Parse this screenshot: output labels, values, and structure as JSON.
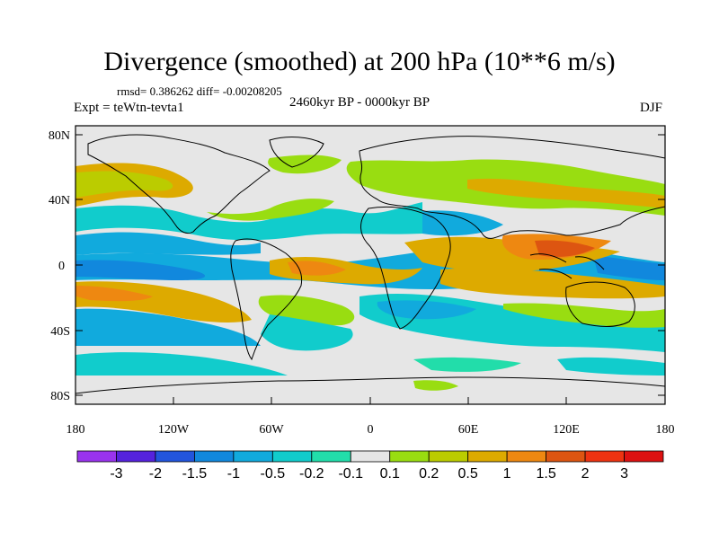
{
  "title": "Divergence (smoothed) at 200 hPa (10**6 m/s)",
  "stats": "rmsd= 0.386262 diff= -0.00208205",
  "experiment": "Expt = teWtn-tevta1",
  "period": "2460kyr BP - 0000kyr BP",
  "season": "DJF",
  "lat_ticks": [
    "80N",
    "40N",
    "0",
    "40S",
    "80S"
  ],
  "lon_ticks": [
    "180",
    "120W",
    "60W",
    "0",
    "60E",
    "120E",
    "180"
  ],
  "colorbar": {
    "labels": [
      "-3",
      "-2",
      "-1.5",
      "-1",
      "-0.5",
      "-0.2",
      "-0.1",
      "0.1",
      "0.2",
      "0.5",
      "1",
      "1.5",
      "2",
      "3"
    ],
    "colors": [
      "#9933ee",
      "#5522dd",
      "#2255dd",
      "#1188dd",
      "#11aadd",
      "#11cccc",
      "#22ddaa",
      "#e6e6e6",
      "#99dd11",
      "#bbcc00",
      "#ddaa00",
      "#ee8811",
      "#dd5511",
      "#ee3311",
      "#dd1111"
    ]
  },
  "colors": {
    "background_field": "#e6e6e6",
    "coastline": "#000000"
  }
}
